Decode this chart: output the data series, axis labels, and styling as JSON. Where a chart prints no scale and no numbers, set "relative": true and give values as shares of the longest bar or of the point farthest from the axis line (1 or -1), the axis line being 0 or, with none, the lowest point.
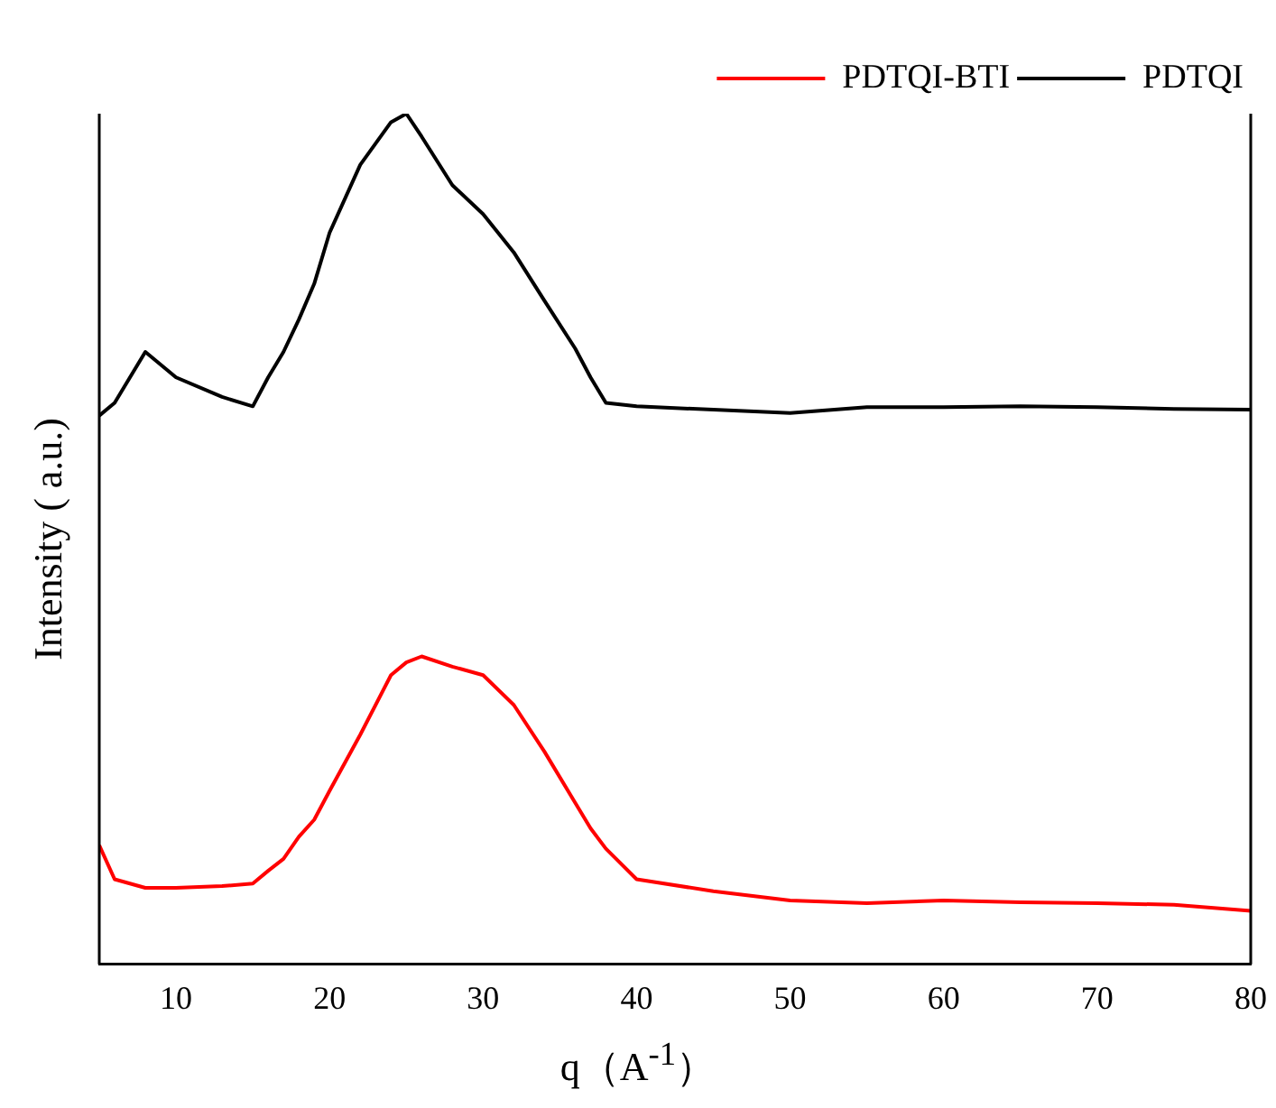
{
  "chart_data": {
    "type": "line",
    "relative": true,
    "xlabel": "q（A$^{-1}$）",
    "ylabel": "Intensity ( a.u.)",
    "xlim": [
      5,
      80
    ],
    "xticks": [
      10,
      20,
      30,
      40,
      50,
      60,
      70,
      80
    ],
    "legend": "top right",
    "marker": "none",
    "line_style": "solid",
    "grid": false,
    "tick_labels": "x",
    "x": [
      5,
      6,
      8,
      10,
      13,
      15,
      16,
      17,
      18,
      19,
      20,
      22,
      24,
      25,
      26,
      28,
      30,
      32,
      34,
      36,
      37,
      38,
      40,
      45,
      50,
      55,
      60,
      65,
      70,
      75,
      80
    ],
    "series": [
      {
        "name": "PDTQI-BTI",
        "color": "#ff0000",
        "values": [
          0.14,
          0.1,
          0.09,
          0.09,
          0.092,
          0.095,
          0.11,
          0.124,
          0.15,
          0.17,
          0.204,
          0.27,
          0.34,
          0.355,
          0.362,
          0.35,
          0.34,
          0.305,
          0.25,
          0.19,
          0.16,
          0.136,
          0.1,
          0.086,
          0.075,
          0.072,
          0.075,
          0.073,
          0.072,
          0.07,
          0.063
        ]
      },
      {
        "name": "PDTQI",
        "color": "#000000",
        "values": [
          0.645,
          0.66,
          0.72,
          0.69,
          0.667,
          0.656,
          0.69,
          0.72,
          0.758,
          0.8,
          0.86,
          0.94,
          0.99,
          1,
          0.973,
          0.916,
          0.882,
          0.837,
          0.78,
          0.724,
          0.69,
          0.66,
          0.656,
          0.652,
          0.648,
          0.655,
          0.655,
          0.656,
          0.655,
          0.653,
          0.652
        ]
      }
    ]
  }
}
